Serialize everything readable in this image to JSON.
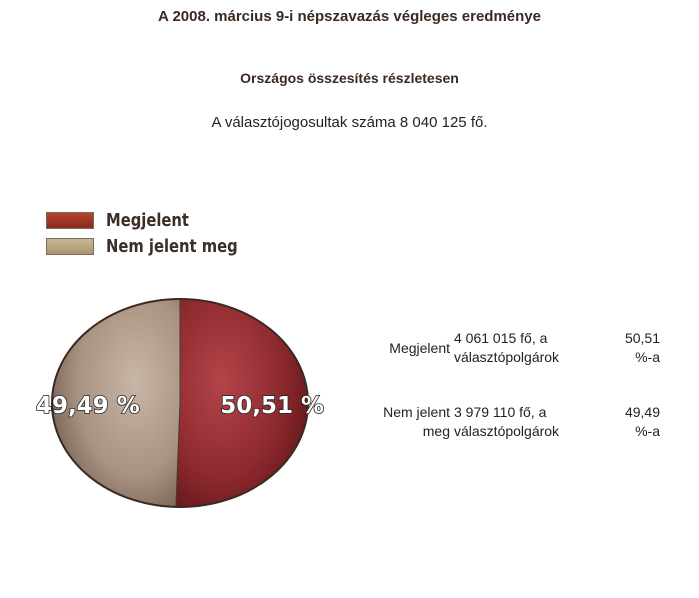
{
  "header": {
    "title": "A 2008. március 9-i népszavazás végleges eredménye",
    "subtitle": "Országos összesítés részletesen",
    "eligible_text": "A választójogosultak száma 8 040 125 fő."
  },
  "legend": {
    "items": [
      {
        "label": "Megjelent",
        "color": "#a23a2c"
      },
      {
        "label": "Nem jelent meg",
        "color": "#b9a684"
      }
    ]
  },
  "results": {
    "rows": [
      {
        "category": "Megjelent",
        "count": "4 061 015 fő, a választópolgárok",
        "percent": "50,51 %-a"
      },
      {
        "category": "Nem jelent meg",
        "count": "3 979 110 fő, a választópolgárok",
        "percent": "49,49 %-a"
      }
    ]
  },
  "chart_data": {
    "type": "pie",
    "categories": [
      "Megjelent",
      "Nem jelent meg"
    ],
    "values": [
      50.51,
      49.49
    ],
    "colors": [
      "#8e2a2e",
      "#a89282"
    ],
    "data_labels": [
      "50,51 %",
      "49,49 %"
    ],
    "legend_position": "top-left"
  }
}
